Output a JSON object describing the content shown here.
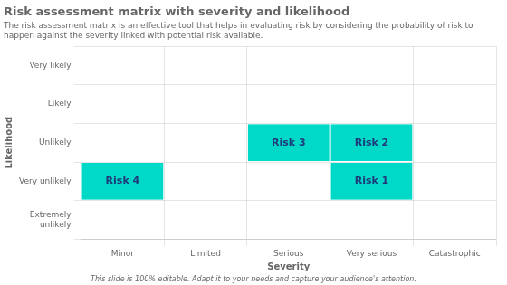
{
  "chart_data": {
    "type": "matrix",
    "title": "Risk assessment matrix with severity and likelihood",
    "subtitle": "The risk assessment matrix is an effective tool that helps in evaluating risk by considering the probability of risk to happen against the severity linked with potential risk available.",
    "footer": "This slide is 100% editable. Adapt it to your needs and capture your audience's attention.",
    "xlabel": "Severity",
    "ylabel": "Likelihood",
    "x": [
      "Minor",
      "Limited",
      "Serious",
      "Very serious",
      "Catastrophic"
    ],
    "y": [
      "Extremely\nunlikely",
      "Very unlikely",
      "Unlikely",
      "Likely",
      "Very likely"
    ],
    "cells": [
      {
        "x": "Minor",
        "y": "Very unlikely",
        "label": "Risk 4"
      },
      {
        "x": "Serious",
        "y": "Unlikely",
        "label": "Risk 3"
      },
      {
        "x": "Very serious",
        "y": "Unlikely",
        "label": "Risk 2"
      },
      {
        "x": "Very serious",
        "y": "Very unlikely",
        "label": "Risk 1"
      }
    ],
    "color": "#00d9c8",
    "grid": true
  }
}
